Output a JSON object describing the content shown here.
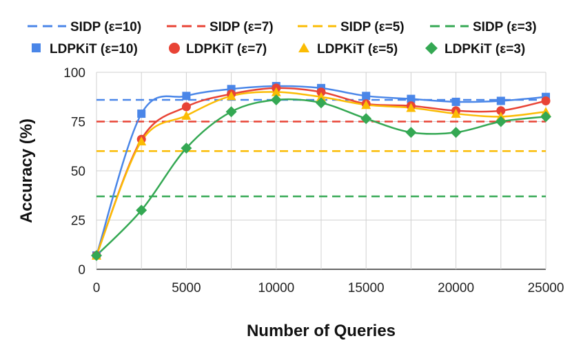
{
  "chart_data": {
    "type": "line",
    "title": "",
    "xlabel": "Number of Queries",
    "ylabel": "Accuracy (%)",
    "xlim": [
      0,
      25000
    ],
    "ylim": [
      0,
      100
    ],
    "xticks": [
      0,
      5000,
      10000,
      15000,
      20000,
      25000
    ],
    "yticks": [
      0,
      25,
      50,
      75,
      100
    ],
    "grid": true,
    "legend_position": "top",
    "x": [
      0,
      2500,
      5000,
      7500,
      10000,
      12500,
      15000,
      17500,
      20000,
      22500,
      25000
    ],
    "baselines": [
      {
        "name": "SIDP (ε=10)",
        "value": 86,
        "color": "#4a86e8"
      },
      {
        "name": "SIDP (ε=7)",
        "value": 75,
        "color": "#e84335"
      },
      {
        "name": "SIDP (ε=5)",
        "value": 60,
        "color": "#fbbc04"
      },
      {
        "name": "SIDP (ε=3)",
        "value": 37,
        "color": "#34a853"
      }
    ],
    "series": [
      {
        "name": "LDPKiT (ε=10)",
        "marker": "square",
        "color": "#4a86e8",
        "values": [
          7,
          79,
          88,
          91.5,
          93,
          92,
          88,
          86.5,
          85,
          85.5,
          87.5
        ]
      },
      {
        "name": "LDPKiT (ε=7)",
        "marker": "circle",
        "color": "#e84335",
        "values": [
          7,
          66,
          82.5,
          89,
          92,
          90,
          84,
          83,
          80.5,
          80.5,
          85.5
        ]
      },
      {
        "name": "LDPKiT (ε=5)",
        "marker": "triangle",
        "color": "#fbbc04",
        "values": [
          7,
          65,
          78,
          88,
          90,
          87.5,
          83.5,
          82,
          79,
          77.5,
          80
        ]
      },
      {
        "name": "LDPKiT (ε=3)",
        "marker": "diamond",
        "color": "#34a853",
        "values": [
          7,
          30,
          61.5,
          80,
          86,
          84.5,
          76.5,
          69.5,
          69.5,
          75,
          77.5
        ]
      }
    ]
  }
}
